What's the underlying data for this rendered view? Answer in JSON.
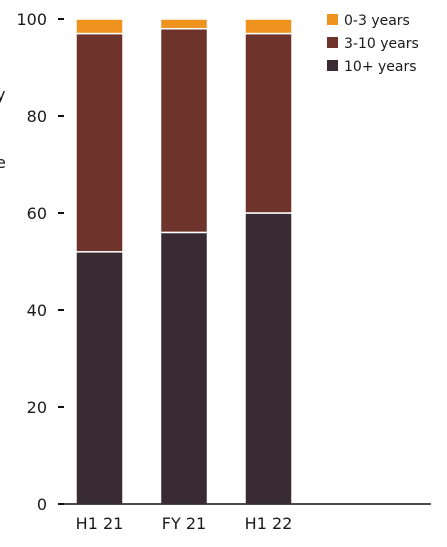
{
  "chart_data": {
    "type": "bar",
    "stacked": true,
    "categories": [
      "H1 21",
      "FY 21",
      "H1 22"
    ],
    "series": [
      {
        "name": "10+ years",
        "color": "#3a2a32",
        "values": [
          52,
          56,
          60
        ]
      },
      {
        "name": "3-10 years",
        "color": "#6e342c",
        "values": [
          45,
          42,
          37
        ]
      },
      {
        "name": "0-3 years",
        "color": "#f0921e",
        "values": [
          3,
          2,
          3
        ]
      }
    ],
    "ylim": [
      0,
      100
    ],
    "yticks": [
      0,
      20,
      40,
      60,
      80,
      100
    ],
    "grid": false,
    "legend_position": "top-right",
    "left_edge_text": [
      "y",
      "e"
    ]
  }
}
